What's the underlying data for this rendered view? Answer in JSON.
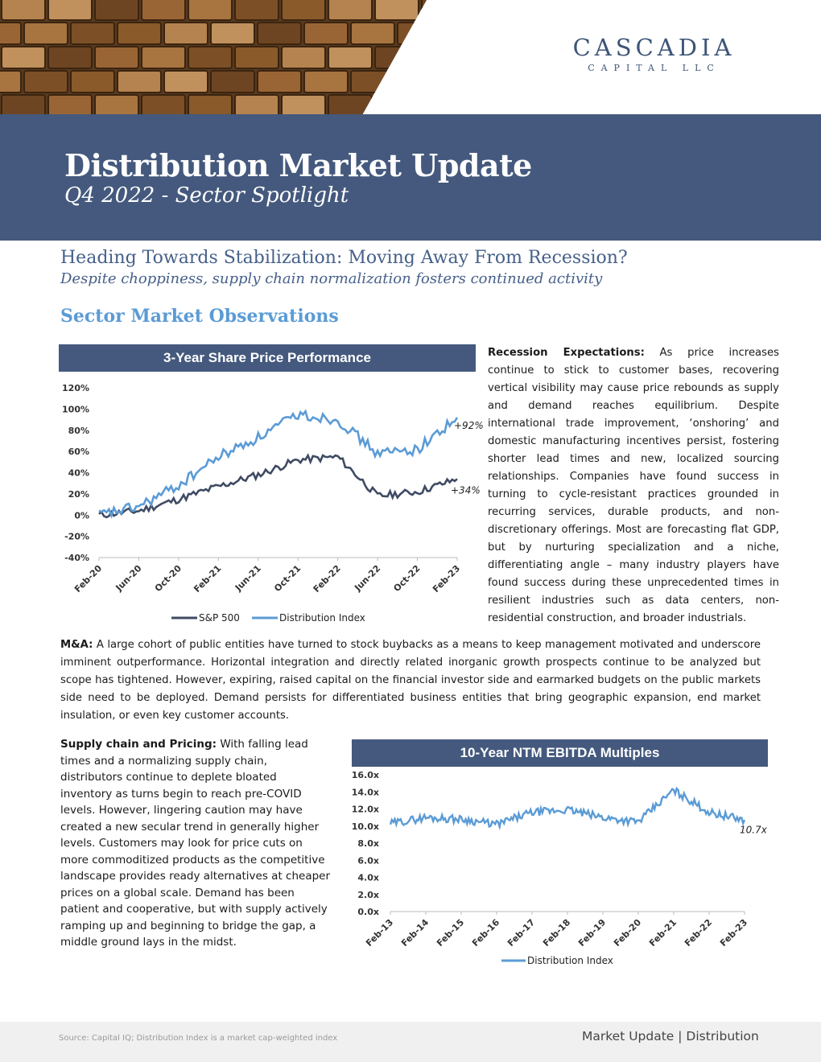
{
  "brand": {
    "name": "CASCADIA",
    "sub": "CAPITAL LLC"
  },
  "header": {
    "title": "Distribution Market Update",
    "subtitle": "Q4 2022 - Sector Spotlight"
  },
  "headline": "Heading Towards Stabilization:  Moving Away From Recession?",
  "subheadline": "Despite choppiness, supply chain normalization fosters continued activity",
  "section_title": "Sector Market Observations",
  "colors": {
    "banner": "#44597d",
    "sp500": "#3f4b63",
    "distribution": "#5b9bd5",
    "accent_text": "#46608a"
  },
  "chart_data": [
    {
      "type": "line",
      "title": "3-Year Share Price Performance",
      "x": [
        "Feb-20",
        "Jun-20",
        "Oct-20",
        "Feb-21",
        "Jun-21",
        "Oct-21",
        "Feb-22",
        "Jun-22",
        "Oct-22",
        "Feb-23"
      ],
      "ylim": [
        -40,
        120
      ],
      "yticks": [
        "120%",
        "100%",
        "80%",
        "60%",
        "40%",
        "20%",
        "0%",
        "-20%",
        "-40%"
      ],
      "series": [
        {
          "name": "S&P 500",
          "values": [
            0,
            4,
            15,
            27,
            38,
            52,
            55,
            18,
            22,
            34
          ]
        },
        {
          "name": "Distribution Index",
          "values": [
            0,
            8,
            28,
            55,
            73,
            95,
            90,
            58,
            62,
            92
          ]
        }
      ],
      "annotations": [
        "+92%",
        "+34%"
      ]
    },
    {
      "type": "line",
      "title": "10-Year NTM EBITDA Multiples",
      "x": [
        "Feb-13",
        "Feb-14",
        "Feb-15",
        "Feb-16",
        "Feb-17",
        "Feb-18",
        "Feb-19",
        "Feb-20",
        "Feb-21",
        "Feb-22",
        "Feb-23"
      ],
      "ylim": [
        0,
        16
      ],
      "yticks": [
        "16.0x",
        "14.0x",
        "12.0x",
        "10.0x",
        "8.0x",
        "6.0x",
        "4.0x",
        "2.0x",
        "0.0x"
      ],
      "series": [
        {
          "name": "Distribution Index",
          "values": [
            10.3,
            11.0,
            10.8,
            10.2,
            11.6,
            11.9,
            11.0,
            10.5,
            14.2,
            11.6,
            10.7
          ]
        }
      ],
      "annotations": [
        "10.7x"
      ]
    }
  ],
  "recession": {
    "label": "Recession Expectations:",
    "text": " As price increases continue to stick to customer bases, recovering vertical visibility may cause price rebounds as supply and demand reaches equilibrium. Despite international trade improvement, ‘onshoring’ and domestic manufacturing incentives persist, fostering shorter lead times and new, localized sourcing relationships. Companies have found success in turning to cycle-resistant practices grounded in recurring services, durable products, and non-discretionary offerings. Most are forecasting flat GDP, but by nurturing specialization and a niche, differentiating angle – many industry players have found success during these unprecedented times in resilient industries such as data centers, non-residential construction, and broader industrials."
  },
  "ma": {
    "label": "M&A:",
    "text": " A large cohort of public entities have turned to stock buybacks as a means to keep management motivated and underscore imminent outperformance. Horizontal integration and directly related inorganic growth prospects continue to be analyzed but scope has tightened. However, expiring, raised capital on the financial investor side and earmarked budgets on the public markets side need to be deployed. Demand persists for differentiated business entities that bring geographic expansion, end market insulation, or even key customer accounts."
  },
  "supply": {
    "label": "Supply chain and Pricing:",
    "text": " With falling lead times and a normalizing supply chain, distributors continue to deplete bloated inventory as turns begin to reach pre-COVID levels. However, lingering caution may have created a new secular trend in generally higher levels. Customers may look for price cuts on more commoditized products as the competitive landscape provides ready alternatives at cheaper prices on a global scale. Demand has been patient and cooperative, but with supply actively ramping up and beginning to bridge the gap, a middle ground lays in the midst."
  },
  "footer": {
    "source": "Source: Capital IQ; Distribution Index is a market cap-weighted index",
    "right": "Market Update | Distribution"
  }
}
